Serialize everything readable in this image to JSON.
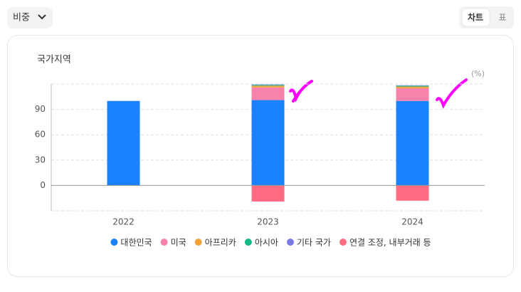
{
  "controls": {
    "dropdown": "비중",
    "tabs": [
      "차트",
      "표"
    ]
  },
  "chart_data": {
    "type": "stacked-bar",
    "title": "국가지역",
    "unit": "(%)",
    "categories": [
      "2022",
      "2023",
      "2024"
    ],
    "series": [
      {
        "name": "대한민국",
        "color": "#1a82ff",
        "values": [
          100,
          101,
          100
        ]
      },
      {
        "name": "미국",
        "color": "#f783ac",
        "values": [
          null,
          15,
          15
        ]
      },
      {
        "name": "아프리카",
        "color": "#f5a23a",
        "values": [
          null,
          2,
          2
        ]
      },
      {
        "name": "아시아",
        "color": "#12b886",
        "values": [
          null,
          1,
          1
        ]
      },
      {
        "name": "기타 국가",
        "color": "#7a7ae6",
        "values": [
          null,
          0.5,
          0.5
        ]
      },
      {
        "name": "연결 조정, 내부거래 등",
        "color": "#ff6b81",
        "values": [
          null,
          -19,
          -18
        ]
      }
    ],
    "ylim": [
      -30,
      120
    ],
    "yticks": [
      0,
      30,
      60,
      90
    ],
    "grid": true
  }
}
